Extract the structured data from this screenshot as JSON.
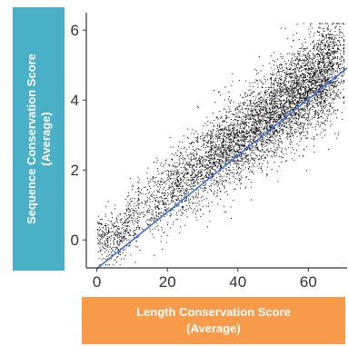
{
  "chart_data": {
    "type": "scatter",
    "title": "",
    "xlabel_line1": "Length Conservation Score",
    "xlabel_line2": "(Average)",
    "ylabel_line1": "Sequence Conservation Score",
    "ylabel_line2": "(Average)",
    "xlim": [
      -3,
      71
    ],
    "ylim": [
      -0.8,
      6.5
    ],
    "x_ticks": [
      0,
      20,
      40,
      60
    ],
    "y_ticks": [
      0,
      2,
      4,
      6
    ],
    "grid": false,
    "point_count": 6000,
    "trend_line": {
      "x": [
        0,
        71
      ],
      "y": [
        -0.82,
        4.92
      ],
      "color": "#3b6fe0"
    },
    "point_color": "#000000",
    "sample_points": [
      {
        "x": 2,
        "y": 0.1
      },
      {
        "x": 5,
        "y": -0.2
      },
      {
        "x": 10,
        "y": 0.3
      },
      {
        "x": 20,
        "y": 1.2
      },
      {
        "x": 30,
        "y": 2.0
      },
      {
        "x": 40,
        "y": 2.9
      },
      {
        "x": 50,
        "y": 3.5
      },
      {
        "x": 55,
        "y": 4.0
      },
      {
        "x": 60,
        "y": 4.3
      },
      {
        "x": 65,
        "y": 4.5
      },
      {
        "x": 68,
        "y": 4.7
      }
    ]
  },
  "colors": {
    "ylabel_box": "#4ab0c7",
    "xlabel_box": "#f79a4a"
  }
}
